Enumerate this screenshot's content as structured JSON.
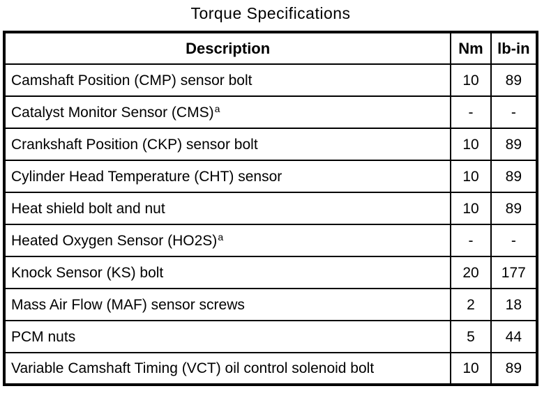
{
  "title": "Torque Specifications",
  "table": {
    "headers": {
      "description": "Description",
      "nm": "Nm",
      "lbin": "lb-in"
    },
    "rows": [
      {
        "description": "Camshaft Position (CMP) sensor bolt",
        "footnote": "",
        "nm": "10",
        "lbin": "89"
      },
      {
        "description": "Catalyst Monitor Sensor (CMS)",
        "footnote": "a",
        "nm": "-",
        "lbin": "-"
      },
      {
        "description": "Crankshaft Position (CKP) sensor bolt",
        "footnote": "",
        "nm": "10",
        "lbin": "89"
      },
      {
        "description": "Cylinder Head Temperature (CHT) sensor",
        "footnote": "",
        "nm": "10",
        "lbin": "89"
      },
      {
        "description": "Heat shield bolt and nut",
        "footnote": "",
        "nm": "10",
        "lbin": "89"
      },
      {
        "description": "Heated Oxygen Sensor (HO2S)",
        "footnote": "a",
        "nm": "-",
        "lbin": "-"
      },
      {
        "description": "Knock Sensor (KS) bolt",
        "footnote": "",
        "nm": "20",
        "lbin": "177"
      },
      {
        "description": "Mass Air Flow (MAF) sensor screws",
        "footnote": "",
        "nm": "2",
        "lbin": "18"
      },
      {
        "description": "PCM nuts",
        "footnote": "",
        "nm": "5",
        "lbin": "44"
      },
      {
        "description": "Variable Camshaft Timing (VCT) oil control solenoid bolt",
        "footnote": "",
        "nm": "10",
        "lbin": "89"
      }
    ]
  },
  "colors": {
    "text": "#000000",
    "background": "#ffffff",
    "border": "#000000"
  }
}
